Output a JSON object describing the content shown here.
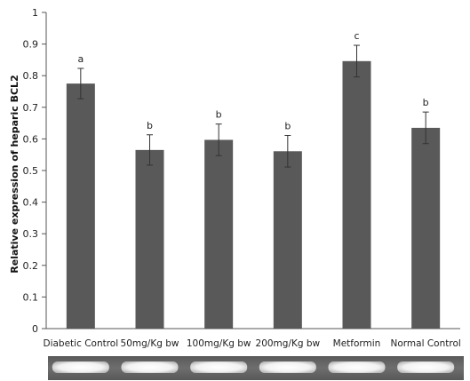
{
  "chart_data": {
    "type": "bar",
    "title": "",
    "xlabel": "",
    "ylabel": "Relative expression of heparic BCL2",
    "ylim": [
      0,
      1
    ],
    "yticks": [
      "0",
      "0.1",
      "0.2",
      "0.3",
      "0.4",
      "0.5",
      "0.6",
      "0.7",
      "0.8",
      "0.9",
      "1"
    ],
    "categories": [
      "Diabetic Control",
      "50mg/Kg bw",
      "100mg/Kg bw",
      "200mg/Kg bw",
      "Metformin",
      "Normal Control"
    ],
    "values": [
      0.775,
      0.565,
      0.597,
      0.561,
      0.846,
      0.635
    ],
    "errors": [
      0.048,
      0.048,
      0.05,
      0.05,
      0.05,
      0.05
    ],
    "significance": [
      "a",
      "b",
      "b",
      "b",
      "c",
      "b"
    ],
    "grid": false,
    "bar_color": "#595959",
    "gel_strip": true
  }
}
